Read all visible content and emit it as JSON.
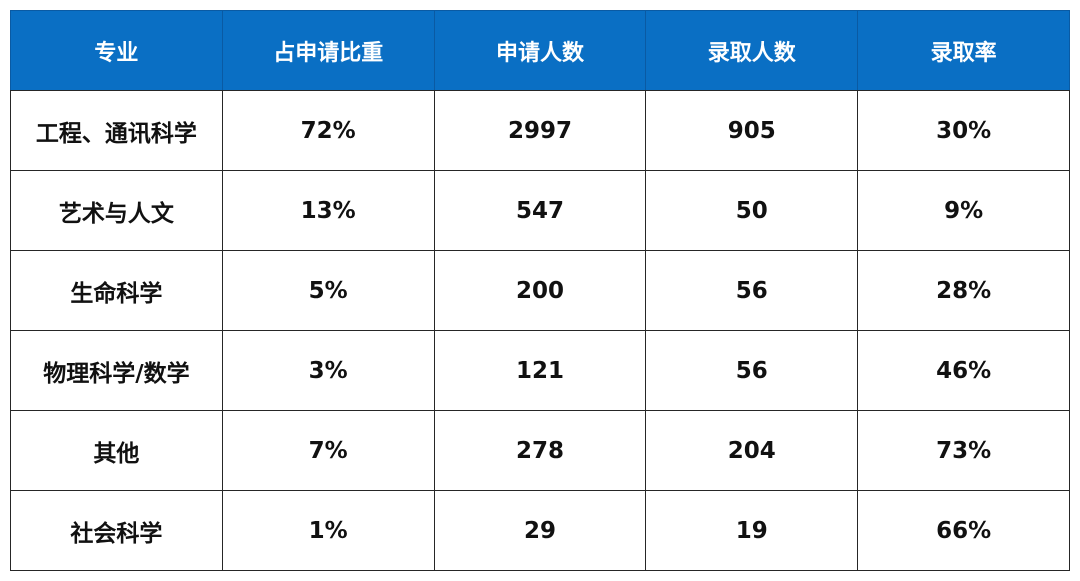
{
  "table": {
    "headers": [
      "专业",
      "占申请比重",
      "申请人数",
      "录取人数",
      "录取率"
    ],
    "rows": [
      [
        "工程、通讯科学",
        "72%",
        "2997",
        "905",
        "30%"
      ],
      [
        "艺术与人文",
        "13%",
        "547",
        "50",
        "9%"
      ],
      [
        "生命科学",
        "5%",
        "200",
        "56",
        "28%"
      ],
      [
        "物理科学/数学",
        "3%",
        "121",
        "56",
        "46%"
      ],
      [
        "其他",
        "7%",
        "278",
        "204",
        "73%"
      ],
      [
        "社会科学",
        "1%",
        "29",
        "19",
        "66%"
      ]
    ]
  },
  "colors": {
    "header_bg": "#0a6fc4",
    "header_text": "#ffffff",
    "border": "#262626",
    "cell_text": "#111111"
  }
}
